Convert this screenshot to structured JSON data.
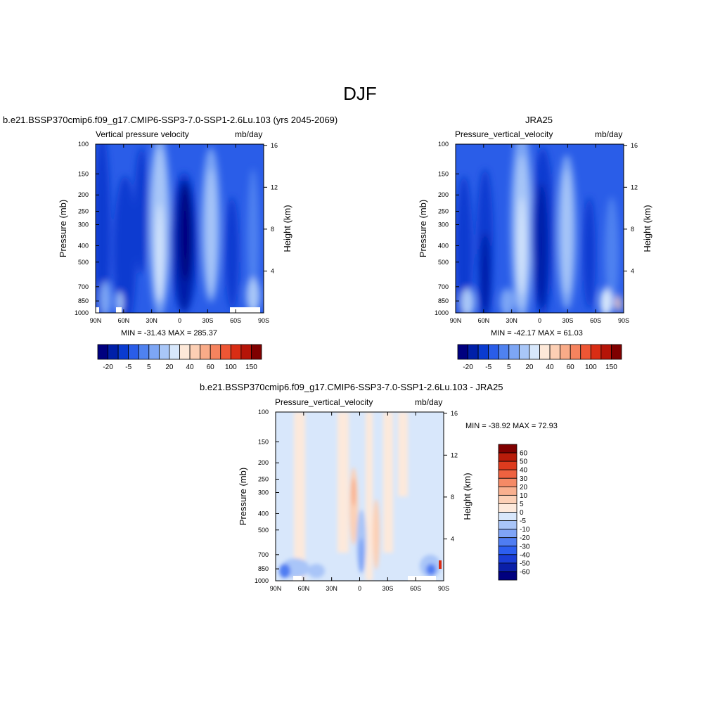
{
  "title": "DJF",
  "colors": {
    "neg": [
      "#00007f",
      "#001fa8",
      "#0a3bd0",
      "#2a5de8",
      "#4f82f0",
      "#7da6f5",
      "#a9c7f8",
      "#d7e7fb"
    ],
    "pos": [
      "#fde8d8",
      "#fccfb4",
      "#f9ab88",
      "#f6835e",
      "#ee5634",
      "#d92d14",
      "#b51408",
      "#7f0000"
    ],
    "diff_scale": [
      "#00007f",
      "#0a1fa8",
      "#1a3dd6",
      "#2c5ef0",
      "#4f7df2",
      "#7fa4f6",
      "#a9c5f8",
      "#d8e7fb",
      "#fde9db",
      "#fcd0b6",
      "#f9b08f",
      "#f58a66",
      "#ee6240",
      "#de3b1e",
      "#b81c0a",
      "#7f0000"
    ]
  },
  "panels": [
    {
      "id": "model",
      "heading": "b.e21.BSSP370cmip6.f09_g17.CMIP6-SSP3-7.0-SSP1-2.6Lu.103 (yrs 2045-2069)",
      "var_label": "Vertical pressure velocity",
      "units": "mb/day",
      "minmax": "MIN = -31.43  MAX = 285.37",
      "colorbar_labels": [
        "-20",
        "-5",
        "5",
        "20",
        "40",
        "60",
        "100",
        "150"
      ]
    },
    {
      "id": "obs",
      "heading": "JRA25",
      "var_label": "Pressure_vertical_velocity",
      "units": "mb/day",
      "minmax": "MIN = -42.17  MAX =  61.03",
      "colorbar_labels": [
        "-20",
        "-5",
        "5",
        "20",
        "40",
        "60",
        "100",
        "150"
      ]
    },
    {
      "id": "diff",
      "heading": "b.e21.BSSP370cmip6.f09_g17.CMIP6-SSP3-7.0-SSP1-2.6Lu.103 - JRA25",
      "var_label": "Pressure_vertical_velocity",
      "units": "mb/day",
      "minmax": "MIN = -38.92  MAX =  72.93",
      "colorbar_labels": [
        "60",
        "50",
        "40",
        "30",
        "20",
        "10",
        "5",
        "0",
        "-5",
        "-10",
        "-20",
        "-30",
        "-40",
        "-50",
        "-60"
      ]
    }
  ],
  "chart_data": {
    "type": "heatmap",
    "xlabel": "",
    "ylabel": "Pressure (mb)",
    "y2label": "Height (km)",
    "x_ticks": [
      "90N",
      "60N",
      "30N",
      "0",
      "30S",
      "60S",
      "90S"
    ],
    "y_ticks": [
      "100",
      "150",
      "200",
      "250",
      "300",
      "400",
      "500",
      "700",
      "850",
      "1000"
    ],
    "y_tick_values": [
      100,
      150,
      200,
      250,
      300,
      400,
      500,
      700,
      850,
      1000
    ],
    "y2_ticks": [
      "16",
      "12",
      "8",
      "4"
    ],
    "y2_tick_values": [
      16,
      12,
      8,
      4
    ],
    "x_range_deg_lat": [
      90,
      -90
    ],
    "y_range_mb": [
      100,
      1000
    ],
    "y_scale": "log"
  }
}
